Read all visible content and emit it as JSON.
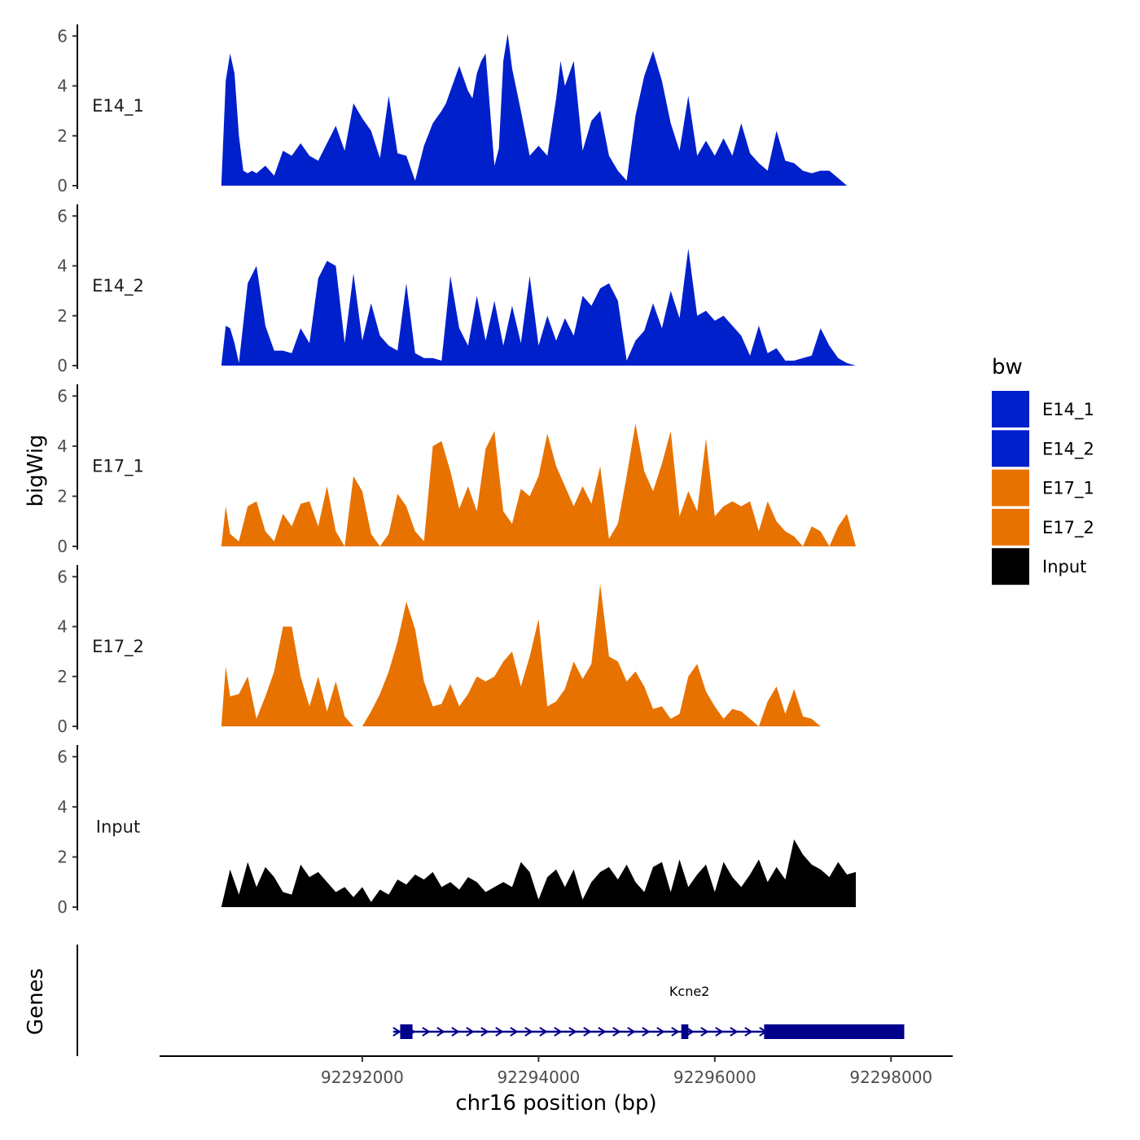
{
  "chart_data": {
    "type": "area",
    "ylabel": "bigWig",
    "xlabel": "chr16 position (bp)",
    "gene_track_label": "Genes",
    "ylim": [
      0,
      6.4
    ],
    "yticks": [
      0,
      2,
      4,
      6
    ],
    "xlim": [
      92289700,
      92298700
    ],
    "xticks": [
      92292000,
      92294000,
      92296000,
      92298000
    ],
    "legend": {
      "title": "bw",
      "position": "right",
      "items": [
        {
          "label": "E14_1",
          "color": "#0020CC"
        },
        {
          "label": "E14_2",
          "color": "#0020CC"
        },
        {
          "label": "E17_1",
          "color": "#E87200"
        },
        {
          "label": "E17_2",
          "color": "#E87200"
        },
        {
          "label": "Input",
          "color": "#000000"
        }
      ]
    },
    "series": [
      {
        "name": "E14_1",
        "color": "#0020CC",
        "x": [
          92290400,
          92290450,
          92290500,
          92290550,
          92290600,
          92290650,
          92290700,
          92290750,
          92290800,
          92290900,
          92291000,
          92291100,
          92291200,
          92291300,
          92291400,
          92291500,
          92291600,
          92291700,
          92291800,
          92291900,
          92292000,
          92292100,
          92292200,
          92292300,
          92292400,
          92292500,
          92292600,
          92292700,
          92292800,
          92292900,
          92292950,
          92293000,
          92293100,
          92293200,
          92293250,
          92293300,
          92293350,
          92293400,
          92293500,
          92293550,
          92293600,
          92293650,
          92293700,
          92293800,
          92293900,
          92294000,
          92294100,
          92294200,
          92294250,
          92294300,
          92294400,
          92294500,
          92294600,
          92294700,
          92294800,
          92294900,
          92295000,
          92295100,
          92295200,
          92295300,
          92295400,
          92295500,
          92295600,
          92295700,
          92295800,
          92295900,
          92296000,
          92296100,
          92296200,
          92296300,
          92296400,
          92296500,
          92296600,
          92296700,
          92296800,
          92296900,
          92297000,
          92297100,
          92297200,
          92297300,
          92297400,
          92297500
        ],
        "y": [
          0,
          4.2,
          5.3,
          4.5,
          2.0,
          0.6,
          0.5,
          0.6,
          0.5,
          0.8,
          0.4,
          1.4,
          1.2,
          1.7,
          1.2,
          1.0,
          1.7,
          2.4,
          1.4,
          3.3,
          2.7,
          2.2,
          1.1,
          3.6,
          1.3,
          1.2,
          0.2,
          1.6,
          2.5,
          3.0,
          3.3,
          3.8,
          4.8,
          3.8,
          3.5,
          4.5,
          5.0,
          5.3,
          0.8,
          1.5,
          5.0,
          6.1,
          4.7,
          3.0,
          1.2,
          1.6,
          1.2,
          3.5,
          5.0,
          4.0,
          5.0,
          1.4,
          2.6,
          3.0,
          1.2,
          0.6,
          0.2,
          2.8,
          4.4,
          5.4,
          4.2,
          2.5,
          1.4,
          3.6,
          1.2,
          1.8,
          1.2,
          1.9,
          1.2,
          2.5,
          1.3,
          0.9,
          0.6,
          2.2,
          1.0,
          0.9,
          0.6,
          0.5,
          0.6,
          0.6,
          0.3,
          0
        ]
      },
      {
        "name": "E14_2",
        "color": "#0020CC",
        "x": [
          92290400,
          92290450,
          92290500,
          92290550,
          92290600,
          92290700,
          92290800,
          92290900,
          92291000,
          92291100,
          92291200,
          92291300,
          92291400,
          92291500,
          92291600,
          92291700,
          92291800,
          92291900,
          92292000,
          92292100,
          92292200,
          92292300,
          92292400,
          92292500,
          92292600,
          92292700,
          92292800,
          92292900,
          92293000,
          92293100,
          92293200,
          92293300,
          92293400,
          92293500,
          92293600,
          92293700,
          92293800,
          92293900,
          92294000,
          92294100,
          92294200,
          92294300,
          92294400,
          92294500,
          92294600,
          92294700,
          92294800,
          92294900,
          92295000,
          92295100,
          92295200,
          92295300,
          92295400,
          92295500,
          92295600,
          92295700,
          92295800,
          92295900,
          92296000,
          92296100,
          92296200,
          92296300,
          92296400,
          92296500,
          92296600,
          92296700,
          92296800,
          92296900,
          92297000,
          92297100,
          92297200,
          92297300,
          92297400,
          92297500,
          92297600
        ],
        "y": [
          0,
          1.6,
          1.5,
          0.9,
          0.1,
          3.3,
          4.0,
          1.6,
          0.6,
          0.6,
          0.5,
          1.5,
          0.9,
          3.5,
          4.2,
          4.0,
          0.9,
          3.7,
          1.0,
          2.5,
          1.2,
          0.8,
          0.6,
          3.3,
          0.5,
          0.3,
          0.3,
          0.2,
          3.6,
          1.5,
          0.8,
          2.8,
          1.0,
          2.6,
          0.8,
          2.4,
          0.9,
          3.6,
          0.8,
          2.0,
          1.0,
          1.9,
          1.2,
          2.8,
          2.4,
          3.1,
          3.3,
          2.6,
          0.2,
          1.0,
          1.4,
          2.5,
          1.5,
          3.0,
          1.9,
          4.7,
          2.0,
          2.2,
          1.8,
          2.0,
          1.6,
          1.2,
          0.4,
          1.6,
          0.5,
          0.7,
          0.2,
          0.2,
          0.3,
          0.4,
          1.5,
          0.8,
          0.3,
          0.1,
          0
        ]
      },
      {
        "name": "E17_1",
        "color": "#E87200",
        "x": [
          92290400,
          92290450,
          92290500,
          92290600,
          92290700,
          92290800,
          92290900,
          92291000,
          92291100,
          92291200,
          92291300,
          92291400,
          92291500,
          92291600,
          92291700,
          92291800,
          92291900,
          92292000,
          92292100,
          92292200,
          92292300,
          92292400,
          92292500,
          92292600,
          92292700,
          92292800,
          92292900,
          92293000,
          92293100,
          92293200,
          92293300,
          92293400,
          92293500,
          92293600,
          92293700,
          92293800,
          92293900,
          92294000,
          92294100,
          92294200,
          92294300,
          92294400,
          92294500,
          92294600,
          92294700,
          92294800,
          92294900,
          92295000,
          92295100,
          92295200,
          92295300,
          92295400,
          92295500,
          92295600,
          92295700,
          92295800,
          92295900,
          92296000,
          92296100,
          92296200,
          92296300,
          92296400,
          92296500,
          92296600,
          92296700,
          92296800,
          92296900,
          92297000,
          92297100,
          92297200,
          92297300,
          92297400,
          92297500,
          92297600
        ],
        "y": [
          0,
          1.6,
          0.5,
          0.2,
          1.6,
          1.8,
          0.6,
          0.2,
          1.3,
          0.8,
          1.7,
          1.8,
          0.8,
          2.4,
          0.6,
          0.0,
          2.8,
          2.2,
          0.5,
          0.0,
          0.5,
          2.1,
          1.6,
          0.6,
          0.2,
          4.0,
          4.2,
          3.0,
          1.5,
          2.4,
          1.4,
          3.9,
          4.6,
          1.4,
          0.9,
          2.3,
          2.0,
          2.8,
          4.5,
          3.2,
          2.4,
          1.6,
          2.4,
          1.7,
          3.2,
          0.3,
          0.9,
          2.8,
          4.9,
          3.0,
          2.2,
          3.3,
          4.6,
          1.2,
          2.2,
          1.4,
          4.3,
          1.2,
          1.6,
          1.8,
          1.6,
          1.8,
          0.6,
          1.8,
          1.0,
          0.6,
          0.4,
          0.0,
          0.8,
          0.6,
          0.0,
          0.8,
          1.3,
          0
        ]
      },
      {
        "name": "E17_2",
        "color": "#E87200",
        "x": [
          92290400,
          92290450,
          92290500,
          92290600,
          92290700,
          92290800,
          92290900,
          92291000,
          92291100,
          92291200,
          92291300,
          92291400,
          92291500,
          92291600,
          92291700,
          92291800,
          92291900,
          92292000,
          92292100,
          92292200,
          92292300,
          92292400,
          92292500,
          92292600,
          92292700,
          92292800,
          92292900,
          92293000,
          92293100,
          92293200,
          92293300,
          92293400,
          92293500,
          92293600,
          92293700,
          92293800,
          92293900,
          92294000,
          92294100,
          92294200,
          92294300,
          92294400,
          92294500,
          92294600,
          92294700,
          92294800,
          92294900,
          92295000,
          92295100,
          92295200,
          92295300,
          92295400,
          92295500,
          92295600,
          92295700,
          92295800,
          92295900,
          92296000,
          92296100,
          92296200,
          92296300,
          92296400,
          92296500,
          92296600,
          92296700,
          92296800,
          92296900,
          92297000,
          92297100,
          92297200,
          92297300,
          92297400
        ],
        "y": [
          0,
          2.4,
          1.2,
          1.3,
          2.0,
          0.3,
          1.2,
          2.2,
          4.0,
          4.0,
          2.0,
          0.8,
          2.0,
          0.6,
          1.8,
          0.4,
          0.0,
          0.0,
          0.6,
          1.3,
          2.2,
          3.4,
          5.0,
          3.9,
          1.8,
          0.8,
          0.9,
          1.7,
          0.8,
          1.3,
          2.0,
          1.8,
          2.0,
          2.6,
          3.0,
          1.6,
          2.8,
          4.3,
          0.8,
          1.0,
          1.5,
          2.6,
          1.9,
          2.5,
          5.7,
          2.8,
          2.6,
          1.8,
          2.2,
          1.6,
          0.7,
          0.8,
          0.3,
          0.5,
          2.0,
          2.5,
          1.4,
          0.8,
          0.3,
          0.7,
          0.6,
          0.3,
          0.0,
          1.0,
          1.6,
          0.5,
          1.5,
          0.4,
          0.3,
          0.0,
          0.0,
          0.0
        ]
      },
      {
        "name": "Input",
        "color": "#000000",
        "x": [
          92290400,
          92290500,
          92290600,
          92290700,
          92290800,
          92290900,
          92291000,
          92291100,
          92291200,
          92291300,
          92291400,
          92291500,
          92291600,
          92291700,
          92291800,
          92291900,
          92292000,
          92292100,
          92292200,
          92292300,
          92292400,
          92292500,
          92292600,
          92292700,
          92292800,
          92292900,
          92293000,
          92293100,
          92293200,
          92293300,
          92293400,
          92293500,
          92293600,
          92293700,
          92293800,
          92293900,
          92294000,
          92294100,
          92294200,
          92294300,
          92294400,
          92294500,
          92294600,
          92294700,
          92294800,
          92294900,
          92295000,
          92295100,
          92295200,
          92295300,
          92295400,
          92295500,
          92295600,
          92295700,
          92295800,
          92295900,
          92296000,
          92296100,
          92296200,
          92296300,
          92296400,
          92296500,
          92296600,
          92296700,
          92296800,
          92296900,
          92297000,
          92297100,
          92297200,
          92297300,
          92297400,
          92297500,
          92297600
        ],
        "y": [
          0,
          1.5,
          0.5,
          1.8,
          0.8,
          1.6,
          1.2,
          0.6,
          0.5,
          1.7,
          1.2,
          1.4,
          1.0,
          0.6,
          0.8,
          0.4,
          0.8,
          0.2,
          0.7,
          0.5,
          1.1,
          0.9,
          1.3,
          1.1,
          1.4,
          0.8,
          1.0,
          0.7,
          1.2,
          1.0,
          0.6,
          0.8,
          1.0,
          0.8,
          1.8,
          1.4,
          0.3,
          1.2,
          1.5,
          0.8,
          1.5,
          0.3,
          1.0,
          1.4,
          1.6,
          1.1,
          1.7,
          1.0,
          0.6,
          1.6,
          1.8,
          0.6,
          1.9,
          0.8,
          1.3,
          1.7,
          0.6,
          1.8,
          1.2,
          0.8,
          1.3,
          1.9,
          1.0,
          1.6,
          1.1,
          2.7,
          2.1,
          1.7,
          1.5,
          1.2,
          1.8,
          1.3,
          1.4
        ]
      }
    ],
    "genes": [
      {
        "name": "Kcne2",
        "strand": "+",
        "start": 92292350,
        "end": 92298150,
        "exons": [
          {
            "start": 92292430,
            "end": 92292570
          },
          {
            "start": 92295620,
            "end": 92295700
          },
          {
            "start": 92296560,
            "end": 92298150
          }
        ]
      }
    ]
  }
}
